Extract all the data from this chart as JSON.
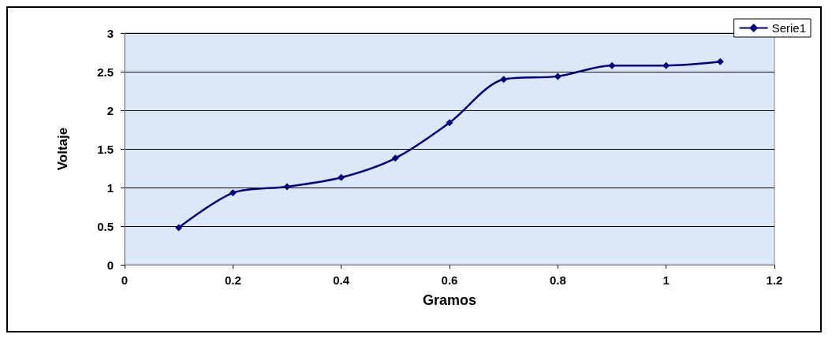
{
  "chart_data": {
    "type": "line",
    "xlabel": "Gramos",
    "ylabel": "Voltaje",
    "x": [
      0.1,
      0.2,
      0.3,
      0.4,
      0.5,
      0.6,
      0.7,
      0.8,
      0.9,
      1,
      1.1
    ],
    "series": [
      {
        "name": "Serie1",
        "color": "#000080",
        "values": [
          0.48,
          0.93,
          1.01,
          1.13,
          1.38,
          1.84,
          2.4,
          2.44,
          2.58,
          2.58,
          2.63
        ]
      }
    ],
    "xlim": [
      0,
      1.2
    ],
    "xticks": [
      0,
      0.2,
      0.4,
      0.6,
      0.8,
      1,
      1.2
    ],
    "ylim": [
      0,
      3
    ],
    "yticks": [
      0,
      0.5,
      1,
      1.5,
      2,
      2.5,
      3
    ],
    "grid": "y",
    "legend": "top right",
    "marker": "diamond",
    "line_style": "solid"
  }
}
